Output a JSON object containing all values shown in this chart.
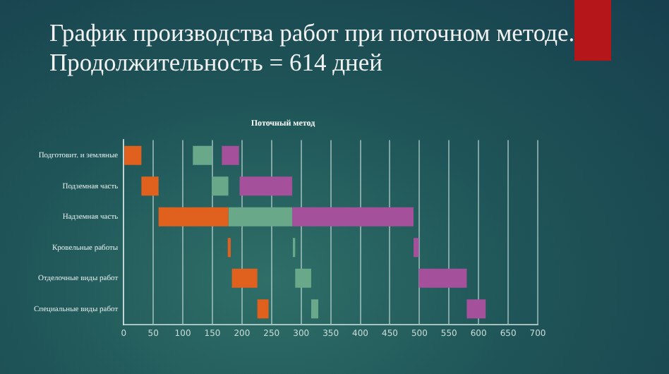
{
  "chart_data": {
    "type": "bar",
    "orientation": "horizontal",
    "title": "График производства работ при поточном методе. Продолжительность = 614 дней",
    "subtitle": "Поточный метод",
    "categories": [
      "Подготовит. и земляные",
      "Подземная часть",
      "Надземная часть",
      "Кровельные работы",
      "Отделочные виды работ",
      "Специальные виды работ"
    ],
    "series": [
      {
        "color": "#e0601e",
        "base": [
          0,
          30,
          59,
          176,
          183,
          226
        ],
        "values": [
          30,
          29,
          118,
          5,
          43,
          19
        ]
      },
      {
        "color": "#6aa88a",
        "base": [
          117,
          149,
          177,
          286,
          290,
          317
        ],
        "values": [
          32,
          28,
          108,
          4,
          27,
          12
        ]
      },
      {
        "color": "#a4509a",
        "base": [
          166,
          196,
          285,
          490,
          499,
          580
        ],
        "values": [
          29,
          89,
          205,
          9,
          81,
          32
        ]
      }
    ],
    "xlim": [
      0,
      700
    ],
    "xticks": [
      0,
      50,
      100,
      150,
      200,
      250,
      300,
      350,
      400,
      450,
      500,
      550,
      600,
      650,
      700
    ],
    "grid": "x",
    "legend": false
  }
}
